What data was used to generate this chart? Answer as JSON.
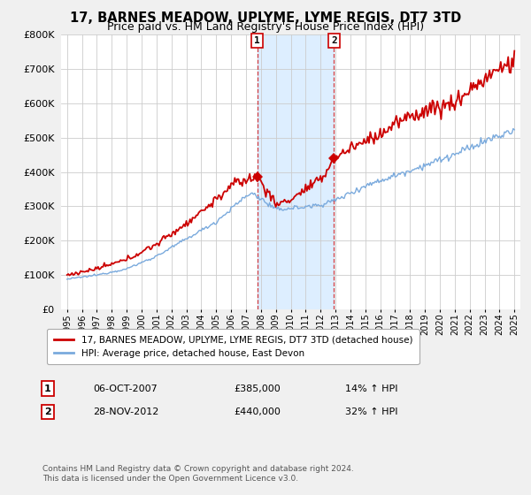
{
  "title": "17, BARNES MEADOW, UPLYME, LYME REGIS, DT7 3TD",
  "subtitle": "Price paid vs. HM Land Registry's House Price Index (HPI)",
  "legend_line1": "17, BARNES MEADOW, UPLYME, LYME REGIS, DT7 3TD (detached house)",
  "legend_line2": "HPI: Average price, detached house, East Devon",
  "transaction1_date": "06-OCT-2007",
  "transaction1_price": 385000,
  "transaction1_label": "14% ↑ HPI",
  "transaction2_date": "28-NOV-2012",
  "transaction2_price": 440000,
  "transaction2_label": "32% ↑ HPI",
  "footer1": "Contains HM Land Registry data © Crown copyright and database right 2024.",
  "footer2": "This data is licensed under the Open Government Licence v3.0.",
  "ylim": [
    0,
    800000
  ],
  "yticks": [
    0,
    100000,
    200000,
    300000,
    400000,
    500000,
    600000,
    700000,
    800000
  ],
  "red_color": "#cc0000",
  "blue_color": "#7aaadd",
  "shade_color": "#ddeeff",
  "transaction1_year": 2007.75,
  "transaction2_year": 2012.9,
  "title_fontsize": 10.5,
  "subtitle_fontsize": 9,
  "bg_color": "#f0f0f0"
}
